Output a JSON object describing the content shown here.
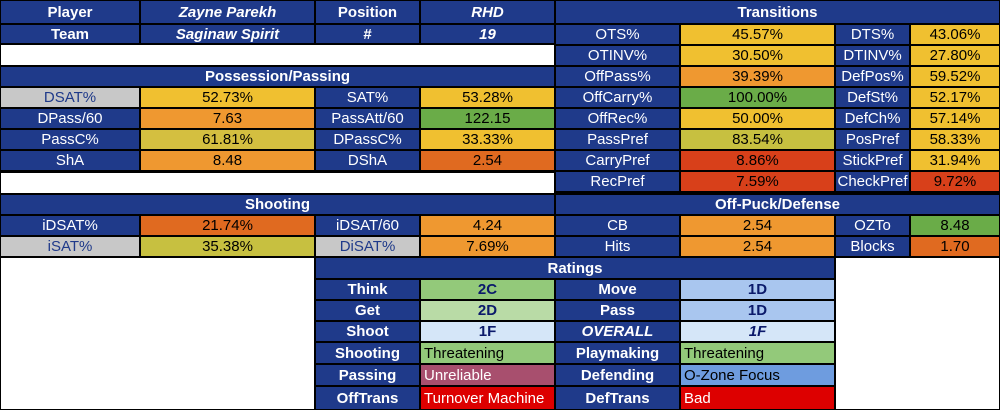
{
  "header": {
    "player_label": "Player",
    "player_value": "Zayne Parekh",
    "position_label": "Position",
    "position_value": "RHD",
    "team_label": "Team",
    "team_value": "Saginaw Spirit",
    "number_label": "#",
    "number_value": "19",
    "transitions_title": "Transitions"
  },
  "possession": {
    "title": "Possession/Passing",
    "rows": [
      {
        "l1": "DSAT%",
        "v1": "52.73%",
        "c1": "#f0c030",
        "l2": "SAT%",
        "v2": "53.28%",
        "c2": "#f0c030"
      },
      {
        "l1": "DPass/60",
        "v1": "7.63",
        "c1": "#ef9830",
        "l2": "PassAtt/60",
        "v2": "122.15",
        "c2": "#6aac48"
      },
      {
        "l1": "PassC%",
        "v1": "61.81%",
        "c1": "#d4bf40",
        "l2": "DPassC%",
        "v2": "33.33%",
        "c2": "#f0c030"
      },
      {
        "l1": "ShA",
        "v1": "8.48",
        "c1": "#ef9830",
        "l2": "DShA",
        "v2": "2.54",
        "c2": "#e06a20"
      }
    ]
  },
  "shooting": {
    "title": "Shooting",
    "rows": [
      {
        "l1": "iDSAT%",
        "v1": "21.74%",
        "c1": "#e06a20",
        "l2": "iDSAT/60",
        "v2": "4.24",
        "c2": "#ef9830"
      },
      {
        "l1": "iSAT%",
        "v1": "35.38%",
        "c1": "#c7c040",
        "l2": "DiSAT%",
        "v2": "7.69%",
        "c2": "#ef9830"
      }
    ]
  },
  "transitions": {
    "rows": [
      {
        "l1": "OTS%",
        "v1": "45.57%",
        "c1": "#f0c030",
        "l2": "DTS%",
        "v2": "43.06%",
        "c2": "#f0c030"
      },
      {
        "l1": "OTINV%",
        "v1": "30.50%",
        "c1": "#f0c030",
        "l2": "DTINV%",
        "v2": "27.80%",
        "c2": "#f0c030"
      },
      {
        "l1": "OffPass%",
        "v1": "39.39%",
        "c1": "#ef9830",
        "l2": "DefPos%",
        "v2": "59.52%",
        "c2": "#f0c030"
      },
      {
        "l1": "OffCarry%",
        "v1": "100.00%",
        "c1": "#6aac48",
        "l2": "DefSt%",
        "v2": "52.17%",
        "c2": "#f0c030"
      },
      {
        "l1": "OffRec%",
        "v1": "50.00%",
        "c1": "#f0c030",
        "l2": "DefCh%",
        "v2": "57.14%",
        "c2": "#f0c030"
      },
      {
        "l1": "PassPref",
        "v1": "83.54%",
        "c1": "#c7c040",
        "l2": "PosPref",
        "v2": "58.33%",
        "c2": "#f0c030"
      },
      {
        "l1": "CarryPref",
        "v1": "8.86%",
        "c1": "#d8401a",
        "l2": "StickPref",
        "v2": "31.94%",
        "c2": "#f0c030"
      },
      {
        "l1": "RecPref",
        "v1": "7.59%",
        "c1": "#d8401a",
        "l2": "CheckPref",
        "v2": "9.72%",
        "c2": "#d8401a"
      }
    ]
  },
  "offpuck": {
    "title": "Off-Puck/Defense",
    "rows": [
      {
        "l1": "CB",
        "v1": "2.54",
        "c1": "#ef9830",
        "l2": "OZTo",
        "v2": "8.48",
        "c2": "#6aac48"
      },
      {
        "l1": "Hits",
        "v1": "2.54",
        "c1": "#ef9830",
        "l2": "Blocks",
        "v2": "1.70",
        "c2": "#e06a20"
      }
    ]
  },
  "ratings": {
    "title": "Ratings",
    "grades": [
      {
        "l1": "Think",
        "v1": "2C",
        "c1": "#93c97a",
        "l2": "Move",
        "v2": "1D",
        "c2": "#a9c6ef"
      },
      {
        "l1": "Get",
        "v1": "2D",
        "c1": "#b9dba6",
        "l2": "Pass",
        "v2": "1D",
        "c2": "#a9c6ef"
      },
      {
        "l1": "Shoot",
        "v1": "1F",
        "c1": "#d5e6f8",
        "l2": "OVERALL",
        "v2": "1F",
        "c2": "#d5e6f8"
      }
    ],
    "styles": [
      {
        "l1": "Shooting",
        "v1": "Threatening",
        "c1": "#93c97a",
        "t1": "#000",
        "l2": "Playmaking",
        "v2": "Threatening",
        "c2": "#93c97a",
        "t2": "#000"
      },
      {
        "l1": "Passing",
        "v1": "Unreliable",
        "c1": "#a84f6e",
        "t1": "#fff",
        "l2": "Defending",
        "v2": "O-Zone Focus",
        "c2": "#6e9cdf",
        "t2": "#000"
      },
      {
        "l1": "OffTrans",
        "v1": "Turnover Machine",
        "c1": "#dd0000",
        "t1": "#fff",
        "l2": "DefTrans",
        "v2": "Bad",
        "c2": "#dd0000",
        "t2": "#fff"
      }
    ]
  }
}
